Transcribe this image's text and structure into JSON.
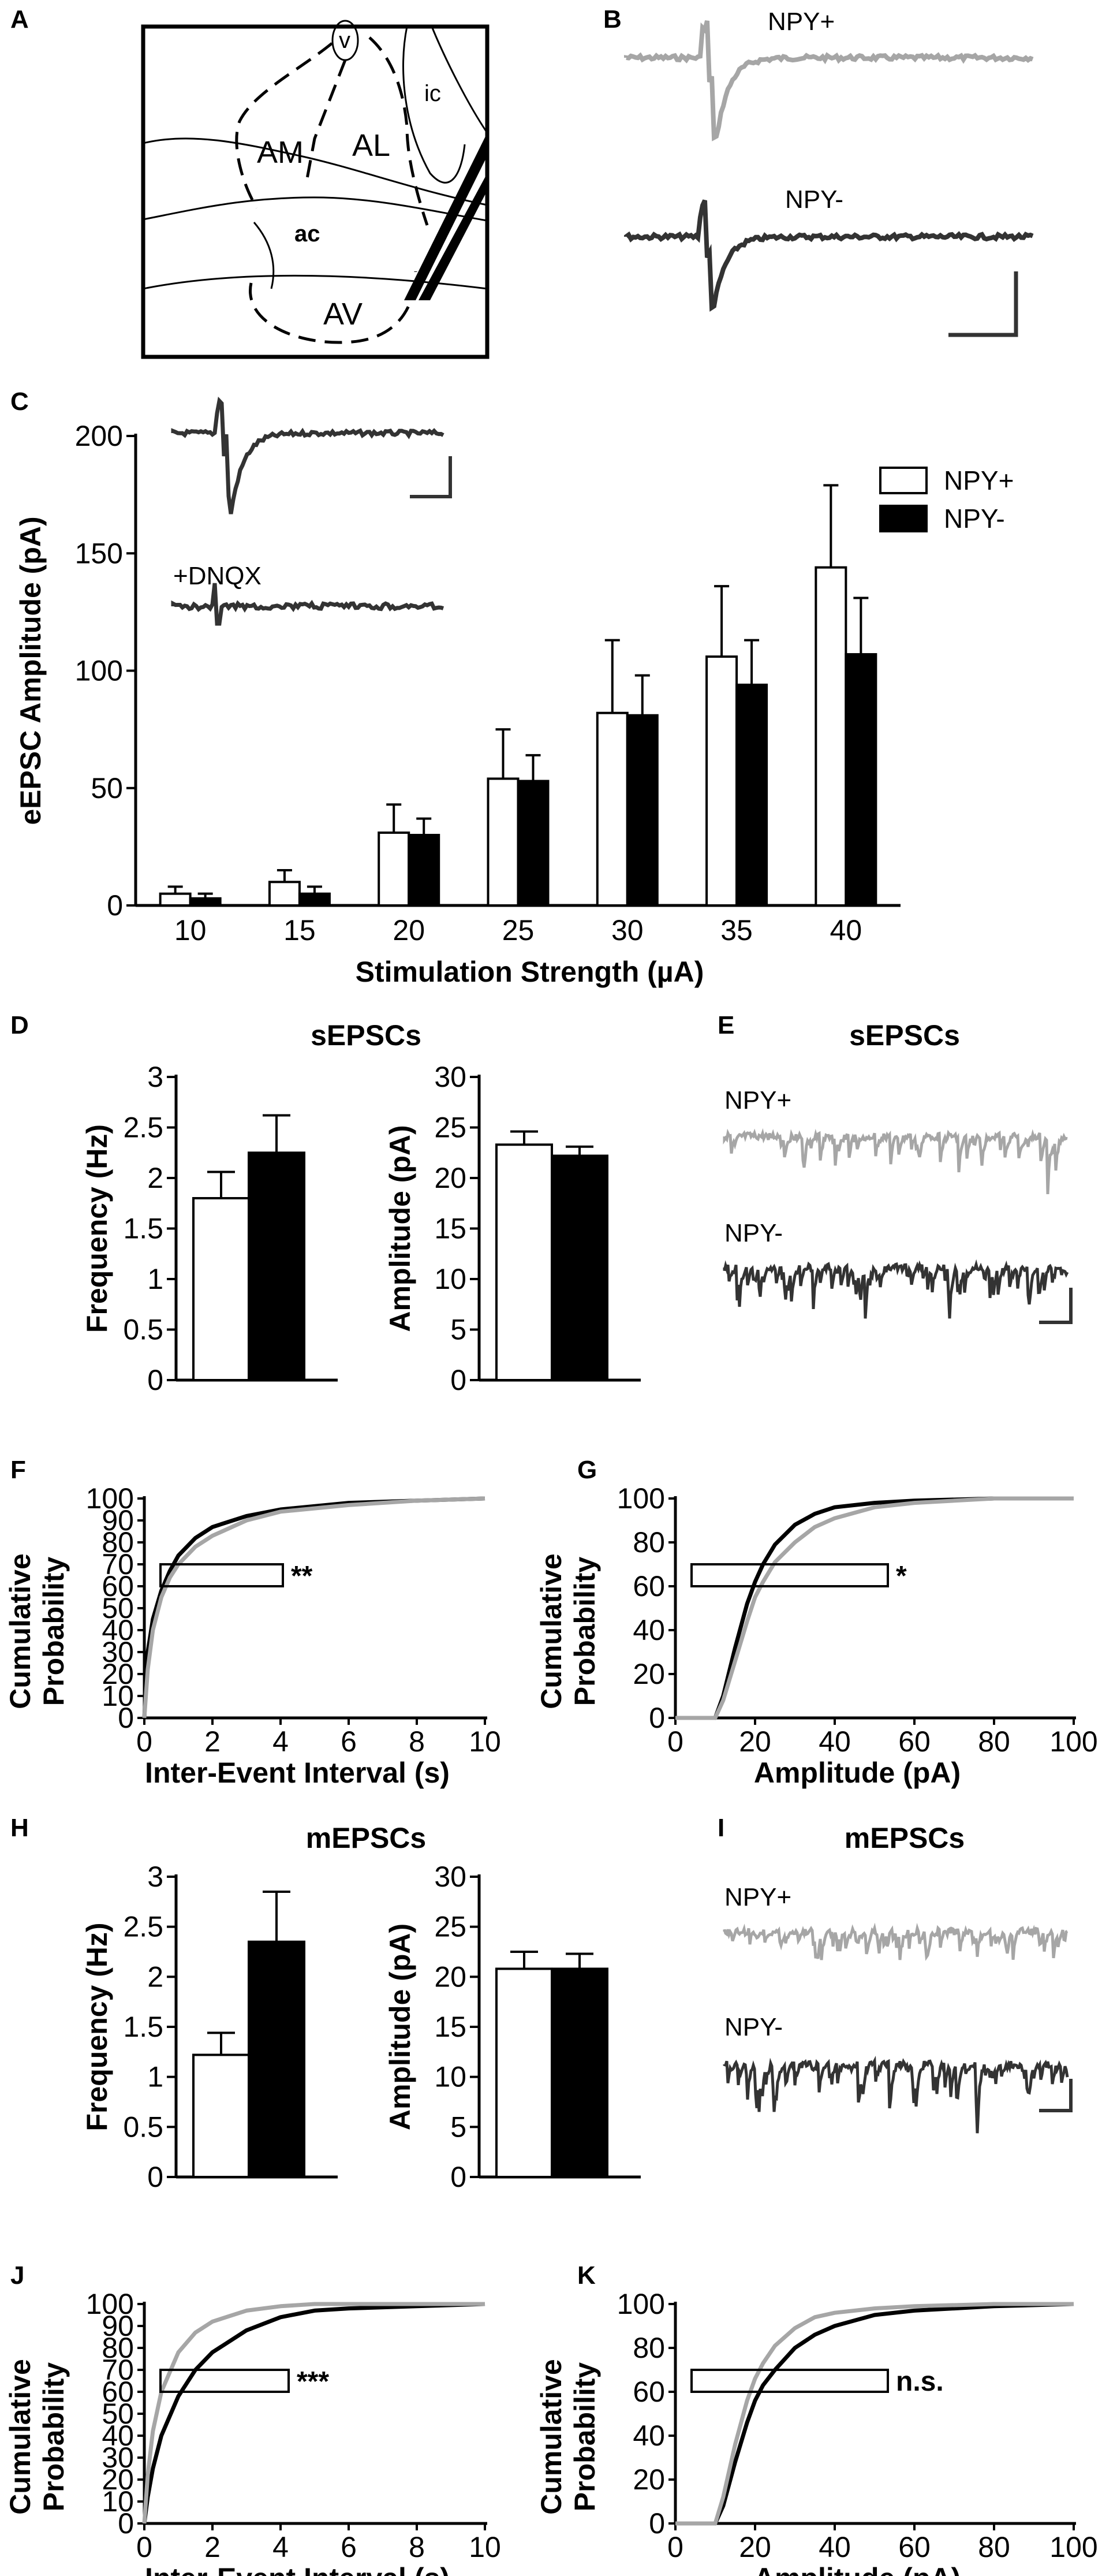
{
  "colors": {
    "npy_pos": "#a6a6a6",
    "npy_neg": "#333333",
    "axis": "#000000"
  },
  "panels": [
    "A",
    "B",
    "C",
    "D",
    "E",
    "F",
    "G",
    "H",
    "I",
    "J",
    "K"
  ],
  "panel_a": {
    "regions": [
      "v",
      "ic",
      "AM",
      "AL",
      "ac",
      "AV"
    ]
  },
  "panel_b": {
    "trace_labels": [
      "NPY+",
      "NPY-"
    ]
  },
  "panel_c_inset": {
    "drug_label": "+DNQX"
  },
  "panel_e": {
    "title": "sEPSCs",
    "trace_labels": [
      "NPY+",
      "NPY-"
    ]
  },
  "panel_i": {
    "title": "mEPSCs",
    "trace_labels": [
      "NPY+",
      "NPY-"
    ]
  },
  "chart_data": [
    {
      "id": "C",
      "type": "bar",
      "title": "",
      "xlabel": "Stimulation Strength (µA)",
      "ylabel": "eEPSC Amplitude (pA)",
      "categories": [
        "10",
        "15",
        "20",
        "25",
        "30",
        "35",
        "40"
      ],
      "ylim": [
        0,
        200
      ],
      "yticks": [
        "0",
        "50",
        "100",
        "150",
        "200"
      ],
      "legend": "top-right",
      "series": [
        {
          "name": "NPY+",
          "fill": "#ffffff",
          "values": [
            5,
            10,
            31,
            54,
            82,
            106,
            144
          ],
          "errors": [
            3,
            5,
            12,
            21,
            31,
            30,
            35
          ]
        },
        {
          "name": "NPY-",
          "fill": "#000000",
          "values": [
            3,
            5,
            30,
            53,
            81,
            94,
            107
          ],
          "errors": [
            2,
            3,
            7,
            11,
            17,
            19,
            24
          ]
        }
      ]
    },
    {
      "id": "D-left",
      "type": "bar",
      "group_title": "sEPSCs",
      "ylabel": "Frequency (Hz)",
      "ylim": [
        0,
        3
      ],
      "yticks": [
        "0",
        "0.5",
        "1",
        "1.5",
        "2",
        "2.5",
        "3"
      ],
      "series": [
        {
          "name": "NPY+",
          "fill": "#ffffff",
          "values": [
            1.8
          ],
          "errors": [
            0.26
          ]
        },
        {
          "name": "NPY-",
          "fill": "#000000",
          "values": [
            2.25
          ],
          "errors": [
            0.37
          ]
        }
      ]
    },
    {
      "id": "D-right",
      "type": "bar",
      "ylabel": "Amplitude (pA)",
      "ylim": [
        0,
        30
      ],
      "yticks": [
        "0",
        "5",
        "10",
        "15",
        "20",
        "25",
        "30"
      ],
      "series": [
        {
          "name": "NPY+",
          "fill": "#ffffff",
          "values": [
            23.3
          ],
          "errors": [
            1.3
          ]
        },
        {
          "name": "NPY-",
          "fill": "#000000",
          "values": [
            22.2
          ],
          "errors": [
            0.9
          ]
        }
      ]
    },
    {
      "id": "F",
      "type": "line",
      "xlabel": "Inter-Event Interval (s)",
      "ylabel": "Cumulative Probability",
      "xlim": [
        0,
        10
      ],
      "ylim": [
        0,
        100
      ],
      "xticks": [
        "0",
        "2",
        "4",
        "6",
        "8",
        "10"
      ],
      "yticks": [
        "0",
        "10",
        "20",
        "30",
        "40",
        "50",
        "60",
        "70",
        "80",
        "90",
        "100"
      ],
      "significance": "**",
      "series": [
        {
          "name": "NPY-",
          "color": "#000000",
          "x": [
            0,
            0.1,
            0.25,
            0.5,
            0.75,
            1,
            1.5,
            2,
            3,
            4,
            6,
            8,
            10
          ],
          "y": [
            0,
            30,
            45,
            58,
            67,
            74,
            82,
            87,
            92,
            95,
            98,
            99,
            100
          ]
        },
        {
          "name": "NPY+",
          "color": "#a6a6a6",
          "x": [
            0,
            0.1,
            0.25,
            0.5,
            0.75,
            1,
            1.5,
            2,
            3,
            4,
            6,
            8,
            10
          ],
          "y": [
            0,
            22,
            40,
            55,
            64,
            70,
            78,
            83,
            90,
            94,
            97,
            99,
            100
          ]
        }
      ]
    },
    {
      "id": "G",
      "type": "line",
      "xlabel": "Amplitude (pA)",
      "ylabel": "Cumulative Probability",
      "xlim": [
        0,
        100
      ],
      "ylim": [
        0,
        100
      ],
      "xticks": [
        "0",
        "20",
        "40",
        "60",
        "80",
        "100"
      ],
      "yticks": [
        "0",
        "20",
        "40",
        "60",
        "80",
        "100"
      ],
      "significance": "*",
      "series": [
        {
          "name": "NPY-",
          "color": "#000000",
          "x": [
            0,
            10,
            12,
            15,
            18,
            20,
            22,
            25,
            30,
            35,
            40,
            50,
            60,
            80,
            100
          ],
          "y": [
            0,
            0,
            10,
            32,
            52,
            62,
            70,
            79,
            88,
            93,
            96,
            98,
            99,
            100,
            100
          ]
        },
        {
          "name": "NPY+",
          "color": "#a6a6a6",
          "x": [
            0,
            10,
            12,
            15,
            18,
            20,
            22,
            25,
            30,
            35,
            40,
            50,
            60,
            80,
            100
          ],
          "y": [
            0,
            0,
            8,
            26,
            44,
            55,
            62,
            71,
            80,
            87,
            91,
            96,
            98,
            100,
            100
          ]
        }
      ]
    },
    {
      "id": "H-left",
      "type": "bar",
      "group_title": "mEPSCs",
      "ylabel": "Frequency (Hz)",
      "ylim": [
        0,
        3
      ],
      "yticks": [
        "0",
        "0.5",
        "1",
        "1.5",
        "2",
        "2.5",
        "3"
      ],
      "series": [
        {
          "name": "NPY+",
          "fill": "#ffffff",
          "values": [
            1.22
          ],
          "errors": [
            0.22
          ]
        },
        {
          "name": "NPY-",
          "fill": "#000000",
          "values": [
            2.35
          ],
          "errors": [
            0.5
          ]
        }
      ]
    },
    {
      "id": "H-right",
      "type": "bar",
      "ylabel": "Amplitude (pA)",
      "ylim": [
        0,
        30
      ],
      "yticks": [
        "0",
        "5",
        "10",
        "15",
        "20",
        "25",
        "30"
      ],
      "series": [
        {
          "name": "NPY+",
          "fill": "#ffffff",
          "values": [
            20.8
          ],
          "errors": [
            1.7
          ]
        },
        {
          "name": "NPY-",
          "fill": "#000000",
          "values": [
            20.8
          ],
          "errors": [
            1.5
          ]
        }
      ]
    },
    {
      "id": "J",
      "type": "line",
      "xlabel": "Inter-Event Interval (s)",
      "ylabel": "Cumulative Probability",
      "xlim": [
        0,
        10
      ],
      "ylim": [
        0,
        100
      ],
      "xticks": [
        "0",
        "2",
        "4",
        "6",
        "8",
        "10"
      ],
      "yticks": [
        "0",
        "10",
        "20",
        "30",
        "40",
        "50",
        "60",
        "70",
        "80",
        "90",
        "100"
      ],
      "significance": "***",
      "series": [
        {
          "name": "NPY-",
          "color": "#000000",
          "x": [
            0,
            0.1,
            0.25,
            0.5,
            1,
            1.5,
            2,
            3,
            4,
            5,
            6,
            8,
            10
          ],
          "y": [
            0,
            12,
            25,
            40,
            58,
            70,
            78,
            88,
            94,
            97,
            98,
            99,
            100
          ]
        },
        {
          "name": "NPY+",
          "color": "#a6a6a6",
          "x": [
            0,
            0.1,
            0.25,
            0.5,
            1,
            1.5,
            2,
            3,
            4,
            5,
            6,
            8,
            10
          ],
          "y": [
            0,
            22,
            42,
            60,
            78,
            87,
            92,
            97,
            99,
            100,
            100,
            100,
            100
          ]
        }
      ]
    },
    {
      "id": "K",
      "type": "line",
      "xlabel": "Amplitude (pA)",
      "ylabel": "Cumulative Probability",
      "xlim": [
        0,
        100
      ],
      "ylim": [
        0,
        100
      ],
      "xticks": [
        "0",
        "20",
        "40",
        "60",
        "80",
        "100"
      ],
      "yticks": [
        "0",
        "20",
        "40",
        "60",
        "80",
        "100"
      ],
      "significance": "n.s.",
      "series": [
        {
          "name": "NPY-",
          "color": "#000000",
          "x": [
            0,
            10,
            12,
            15,
            18,
            20,
            22,
            25,
            30,
            35,
            40,
            50,
            60,
            80,
            100
          ],
          "y": [
            0,
            0,
            8,
            28,
            46,
            56,
            63,
            70,
            80,
            86,
            90,
            95,
            97,
            99,
            100
          ]
        },
        {
          "name": "NPY+",
          "color": "#a6a6a6",
          "x": [
            0,
            10,
            12,
            15,
            18,
            20,
            22,
            25,
            30,
            35,
            40,
            50,
            60,
            80,
            100
          ],
          "y": [
            0,
            0,
            12,
            36,
            56,
            66,
            73,
            81,
            89,
            94,
            96,
            98,
            99,
            100,
            100
          ]
        }
      ]
    }
  ]
}
